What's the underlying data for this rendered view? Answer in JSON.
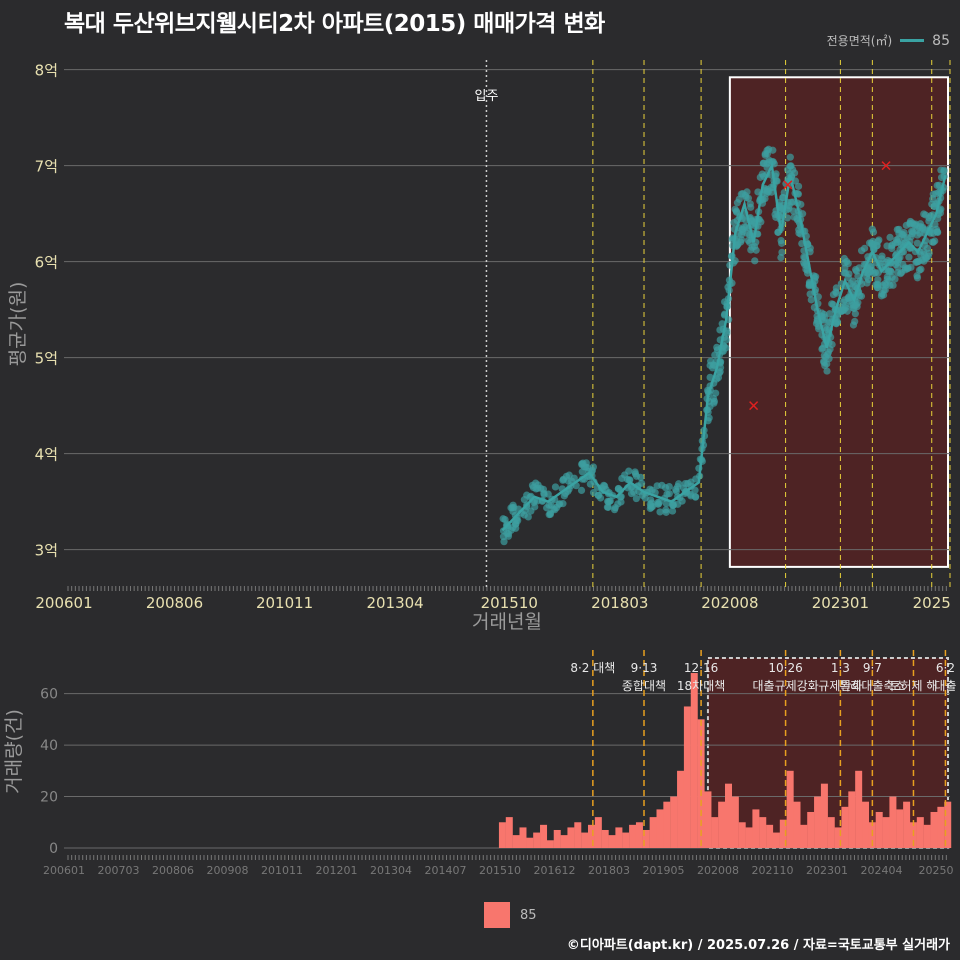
{
  "title": "복대 두산위브지웰시티2차 아파트(2015) 매매가격 변화",
  "legend_top": {
    "label": "전용면적(㎡)",
    "value": "85",
    "color": "#3aa3a3"
  },
  "legend_bottom": {
    "value": "85",
    "color": "#f8766d"
  },
  "footer": "©디아파트(dapt.kr) / 2025.07.26 / 자료=국토교통부 실거래가",
  "chart_data": [
    {
      "type": "scatter",
      "title": "매매가격",
      "xlabel": "거래년월",
      "ylabel": "평균가(원)",
      "x_tick_labels": [
        "200601",
        "200806",
        "201011",
        "201304",
        "201510",
        "201803",
        "202008",
        "202301",
        "2025"
      ],
      "x_tick_values": [
        2006.0,
        2008.42,
        2010.83,
        2013.25,
        2015.75,
        2018.17,
        2020.58,
        2023.0,
        2025.0
      ],
      "xlim": [
        2006.0,
        2025.4
      ],
      "y_tick_labels": [
        "3억",
        "4억",
        "5억",
        "6억",
        "7억",
        "8억"
      ],
      "y_tick_values": [
        3,
        4,
        5,
        6,
        7,
        8
      ],
      "ylim": [
        2.6,
        8.1
      ],
      "annotation": {
        "label": "입주",
        "x": 2015.25
      },
      "policy_lines_x": [
        2017.58,
        2018.7,
        2019.95,
        2021.8,
        2023.0,
        2023.7,
        2025.0,
        2025.4
      ],
      "highlight_range_x": [
        2020.58,
        2025.4
      ],
      "highlight_range_y": [
        2.82,
        7.92
      ],
      "series_line": {
        "name": "85",
        "x": [
          2015.6,
          2015.8,
          2016.0,
          2016.3,
          2016.6,
          2016.9,
          2017.2,
          2017.5,
          2017.8,
          2018.1,
          2018.4,
          2018.7,
          2019.0,
          2019.3,
          2019.6,
          2019.9,
          2020.1,
          2020.3,
          2020.5,
          2020.7,
          2020.9,
          2021.1,
          2021.3,
          2021.5,
          2021.7,
          2021.9,
          2022.1,
          2022.3,
          2022.5,
          2022.7,
          2022.9,
          2023.1,
          2023.3,
          2023.5,
          2023.7,
          2023.9,
          2024.1,
          2024.3,
          2024.5,
          2024.7,
          2024.9,
          2025.1,
          2025.3
        ],
        "y": [
          3.2,
          3.3,
          3.4,
          3.55,
          3.5,
          3.6,
          3.7,
          3.8,
          3.6,
          3.55,
          3.7,
          3.6,
          3.55,
          3.5,
          3.6,
          3.7,
          4.6,
          4.9,
          5.4,
          6.3,
          6.6,
          6.2,
          6.8,
          7.0,
          6.3,
          6.9,
          6.5,
          6.0,
          5.5,
          5.1,
          5.5,
          5.8,
          5.6,
          5.9,
          6.1,
          5.9,
          6.0,
          6.1,
          6.2,
          6.1,
          6.3,
          6.5,
          6.9
        ]
      },
      "outliers": {
        "x": [
          2021.1,
          2021.85,
          2024.0
        ],
        "y": [
          4.5,
          6.8,
          7.0
        ]
      }
    },
    {
      "type": "bar",
      "title": "거래량",
      "ylabel": "거래량(건)",
      "x_tick_labels": [
        "200601",
        "200703",
        "200806",
        "200908",
        "201011",
        "201201",
        "201304",
        "201407",
        "201510",
        "201612",
        "201803",
        "201905",
        "202008",
        "202110",
        "202301",
        "202404",
        "20250"
      ],
      "y_tick_labels": [
        "0",
        "20",
        "40",
        "60"
      ],
      "y_tick_values": [
        0,
        20,
        40,
        60
      ],
      "ylim": [
        0,
        75
      ],
      "series": [
        {
          "name": "85",
          "x": [
            2015.6,
            2015.75,
            2015.9,
            2016.05,
            2016.2,
            2016.35,
            2016.5,
            2016.65,
            2016.8,
            2016.95,
            2017.1,
            2017.25,
            2017.4,
            2017.55,
            2017.7,
            2017.85,
            2018.0,
            2018.15,
            2018.3,
            2018.45,
            2018.6,
            2018.75,
            2018.9,
            2019.05,
            2019.2,
            2019.35,
            2019.5,
            2019.65,
            2019.8,
            2019.95,
            2020.1,
            2020.25,
            2020.4,
            2020.55,
            2020.7,
            2020.85,
            2021.0,
            2021.15,
            2021.3,
            2021.45,
            2021.6,
            2021.75,
            2021.9,
            2022.05,
            2022.2,
            2022.35,
            2022.5,
            2022.65,
            2022.8,
            2022.95,
            2023.1,
            2023.25,
            2023.4,
            2023.55,
            2023.7,
            2023.85,
            2024.0,
            2024.15,
            2024.3,
            2024.45,
            2024.6,
            2024.75,
            2024.9,
            2025.05,
            2025.2,
            2025.35
          ],
          "values": [
            10,
            12,
            5,
            8,
            4,
            6,
            9,
            3,
            7,
            5,
            8,
            10,
            6,
            9,
            12,
            7,
            5,
            8,
            6,
            9,
            10,
            7,
            12,
            15,
            18,
            20,
            30,
            55,
            68,
            50,
            22,
            12,
            18,
            25,
            20,
            10,
            8,
            15,
            12,
            9,
            6,
            11,
            30,
            18,
            9,
            14,
            20,
            25,
            12,
            8,
            16,
            22,
            30,
            18,
            10,
            14,
            12,
            20,
            15,
            18,
            10,
            12,
            9,
            14,
            16,
            18
          ]
        }
      ],
      "policy_labels": [
        {
          "date": "8·2 대책",
          "x": 2017.58
        },
        {
          "date": "9·13",
          "text": "종합대책",
          "x": 2018.7
        },
        {
          "date": "12·16",
          "text": "18차대책",
          "x": 2019.95
        },
        {
          "date": "10·26",
          "text": "대출규제강화",
          "x": 2021.8
        },
        {
          "date": "1·3",
          "text": "규제완화",
          "x": 2023.0
        },
        {
          "date": "9·7",
          "text": "특례대출축소",
          "x": 2023.7
        },
        {
          "date": "",
          "text": "토허제 해",
          "x": 2024.6
        },
        {
          "date": "6·2",
          "text": "대출",
          "x": 2025.3
        }
      ],
      "highlight_range_x": [
        2020.1,
        2025.4
      ]
    }
  ]
}
